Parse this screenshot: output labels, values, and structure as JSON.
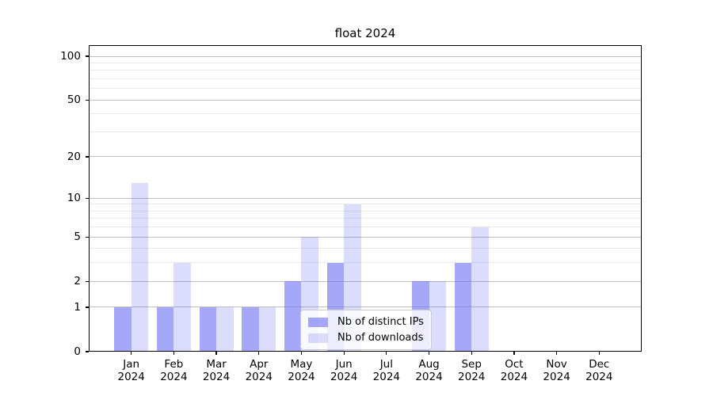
{
  "title": "float 2024",
  "chart_data": {
    "type": "bar",
    "title": "float 2024",
    "xlabel": "",
    "ylabel": "",
    "categories": [
      {
        "line1": "Jan",
        "line2": "2024"
      },
      {
        "line1": "Feb",
        "line2": "2024"
      },
      {
        "line1": "Mar",
        "line2": "2024"
      },
      {
        "line1": "Apr",
        "line2": "2024"
      },
      {
        "line1": "May",
        "line2": "2024"
      },
      {
        "line1": "Jun",
        "line2": "2024"
      },
      {
        "line1": "Jul",
        "line2": "2024"
      },
      {
        "line1": "Aug",
        "line2": "2024"
      },
      {
        "line1": "Sep",
        "line2": "2024"
      },
      {
        "line1": "Oct",
        "line2": "2024"
      },
      {
        "line1": "Nov",
        "line2": "2024"
      },
      {
        "line1": "Dec",
        "line2": "2024"
      }
    ],
    "series": [
      {
        "name": "Nb of distinct IPs",
        "values": [
          1,
          1,
          1,
          1,
          2,
          3,
          0,
          2,
          3,
          0,
          0,
          0
        ],
        "color": "#696cf5",
        "alpha": 0.6
      },
      {
        "name": "Nb of downloads",
        "values": [
          13,
          3,
          1,
          1,
          5,
          9,
          0,
          2,
          6,
          0,
          0,
          0
        ],
        "color": "#696cf5",
        "alpha": 0.23
      }
    ],
    "y_axis": {
      "scale": "log1p",
      "tick_values": [
        0,
        1,
        2,
        5,
        10,
        20,
        50,
        100
      ],
      "tick_labels": [
        "0",
        "1",
        "2",
        "5",
        "10",
        "20",
        "50",
        "100"
      ],
      "minor_gridlines": [
        3,
        4,
        6,
        7,
        8,
        9,
        30,
        40,
        60,
        70,
        80,
        90
      ],
      "ylim": [
        0,
        100
      ]
    },
    "grid": true,
    "legend": {
      "position": "lower center",
      "entries": [
        "Nb of distinct IPs",
        "Nb of downloads"
      ]
    }
  },
  "colors": {
    "bar_dark_flat": "#a8aaf7",
    "bar_light_flat": "#dbdcf8",
    "major_grid": "#bdbdbd",
    "minor_grid": "#e9e9e9",
    "spine": "#000000",
    "text": "#000000",
    "legend_border": "#cccccc"
  }
}
